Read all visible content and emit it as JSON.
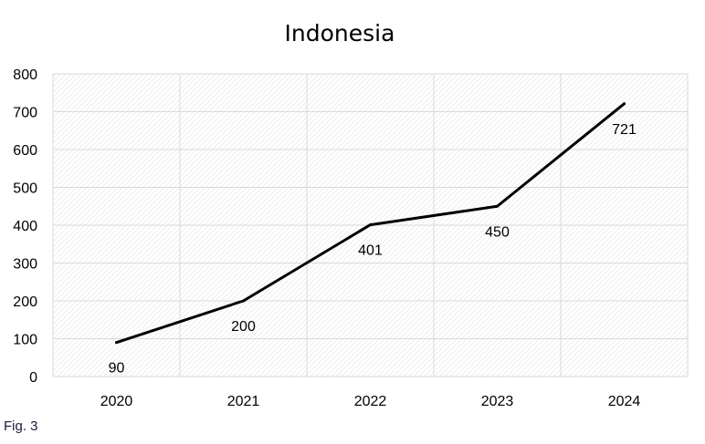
{
  "caption": "Fig. 3",
  "colors": {
    "line": "#000000",
    "grid": "#d9d9d9",
    "hatch": "#e6e6e6"
  },
  "chart_data": {
    "type": "line",
    "title": "Indonesia",
    "xlabel": "",
    "ylabel": "",
    "categories": [
      "2020",
      "2021",
      "2022",
      "2023",
      "2024"
    ],
    "series": [
      {
        "values": [
          90,
          200,
          401,
          450,
          721
        ]
      }
    ],
    "data_labels": [
      "90",
      "200",
      "401",
      "450",
      "721"
    ],
    "y_ticks": [
      "0",
      "100",
      "200",
      "300",
      "400",
      "500",
      "600",
      "700",
      "800"
    ],
    "ylim": [
      0,
      800
    ],
    "grid": true,
    "legend": "none"
  }
}
